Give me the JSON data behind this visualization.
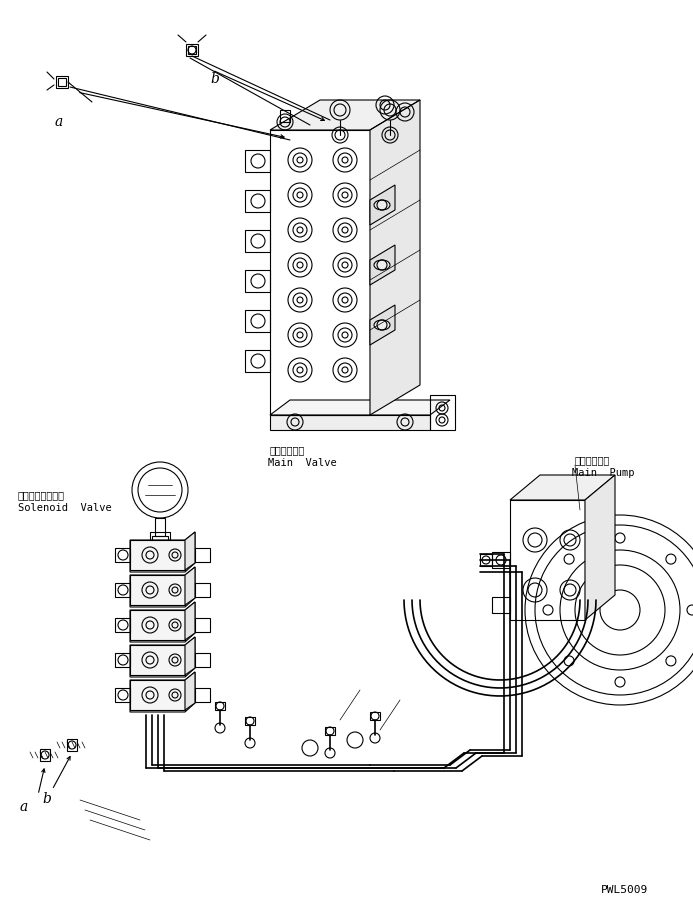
{
  "background_color": "#ffffff",
  "page_id": "PWL5009",
  "labels": {
    "main_valve_jp": "メインバルブ",
    "main_valve_en": "Main  Valve",
    "main_pump_jp": "メインポンプ",
    "main_pump_en": "Main  Pump",
    "solenoid_jp": "ソレノイドバルブ",
    "solenoid_en": "Solenoid  Valve",
    "label_a_top": "a",
    "label_b_top": "b",
    "label_a_bot": "a",
    "label_b_bot": "b"
  },
  "lc": "#000000",
  "lw": 0.8,
  "tlw": 0.5,
  "fs_label": 7.5,
  "fs_en": 7.5,
  "fs_jp": 7.0,
  "fs_ab": 10
}
